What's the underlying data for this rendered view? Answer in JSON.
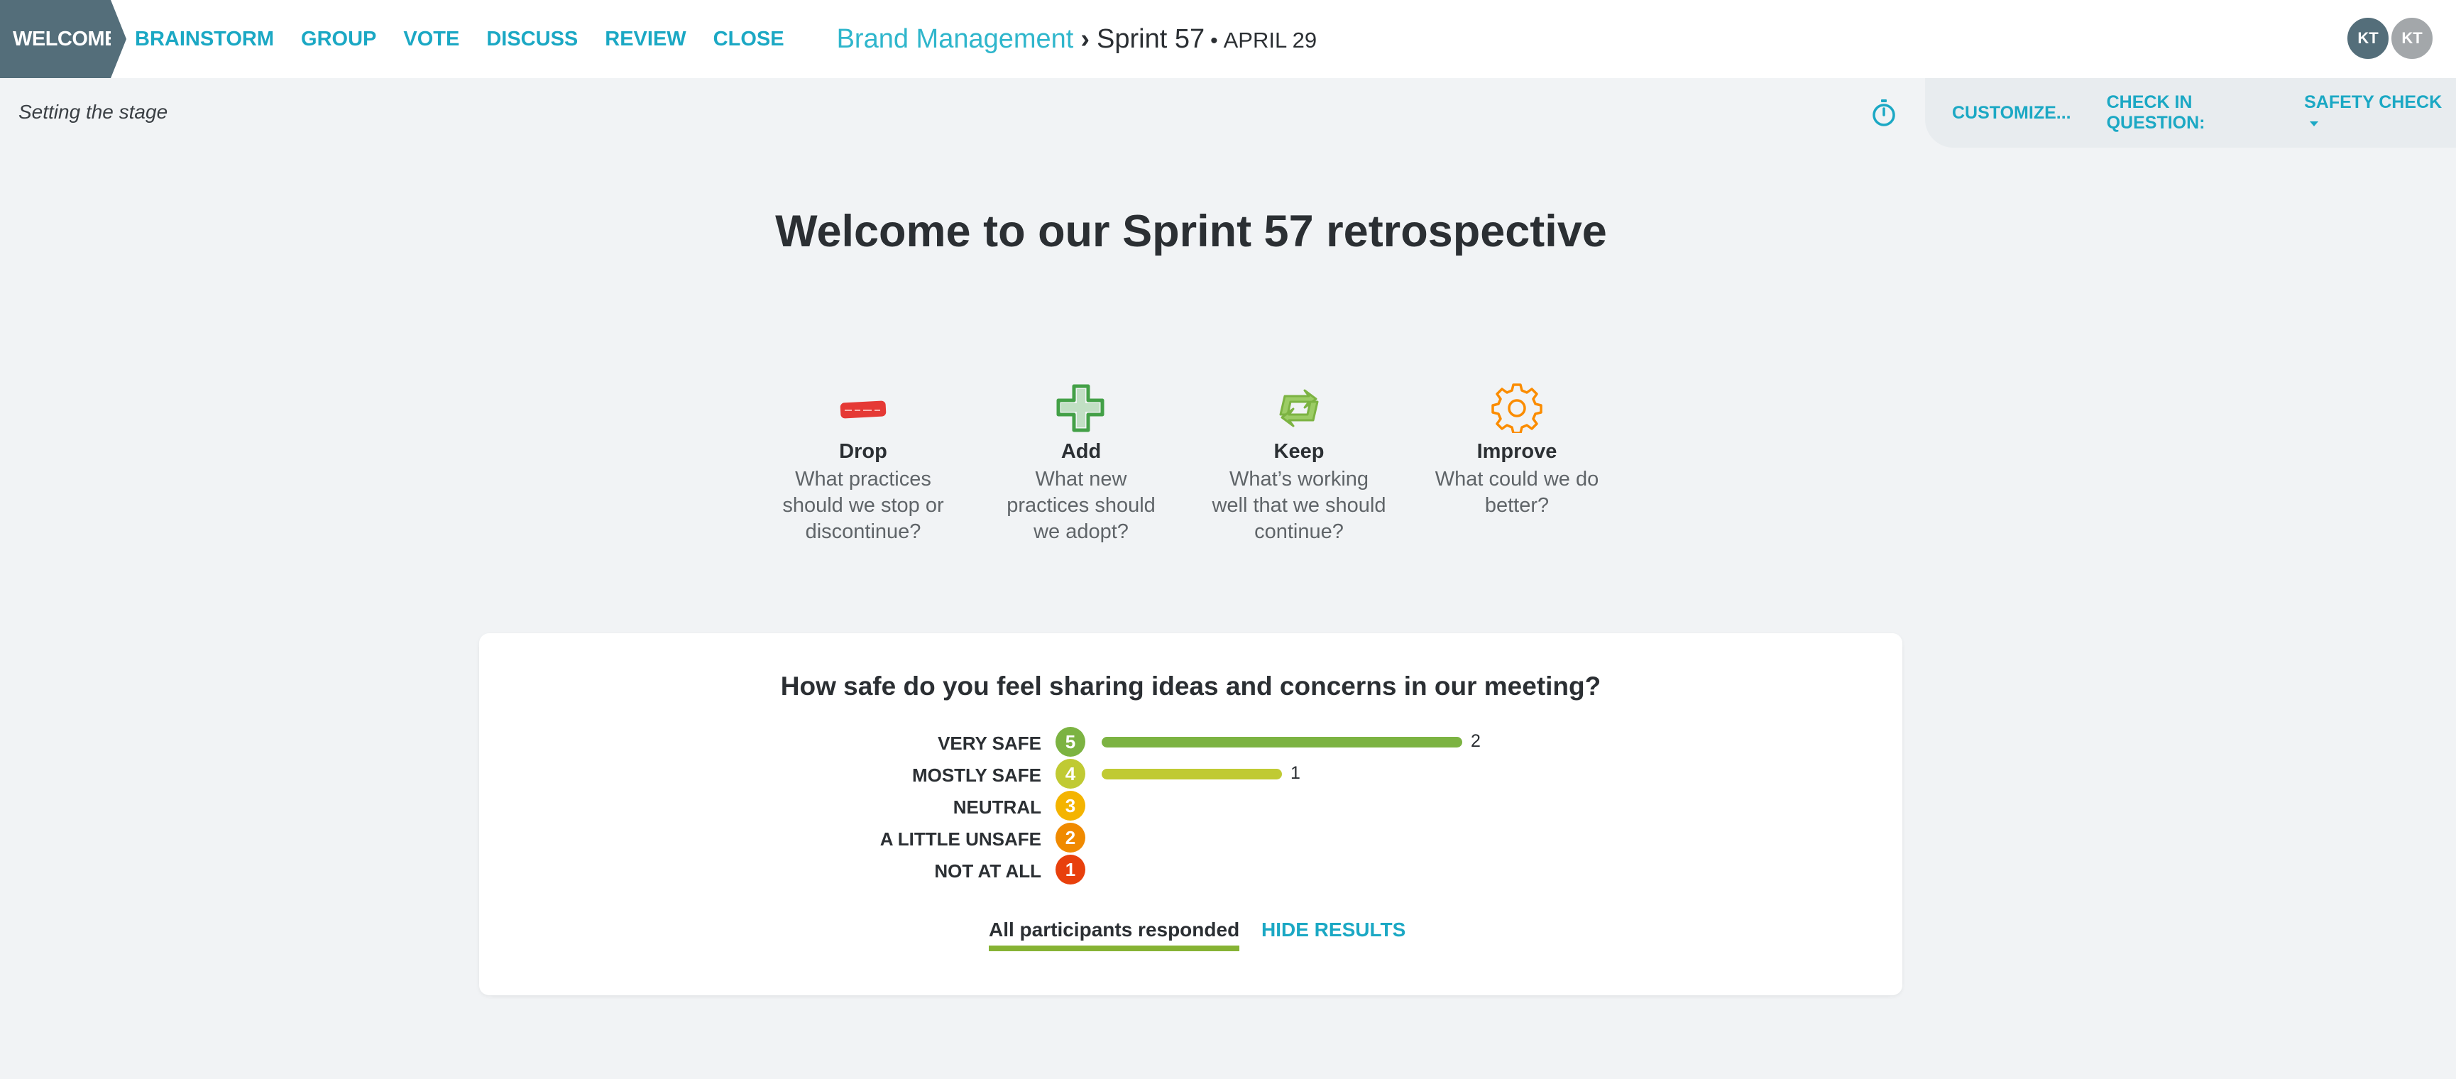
{
  "nav": {
    "stages": [
      {
        "label": "WELCOME",
        "active": true
      },
      {
        "label": "BRAINSTORM"
      },
      {
        "label": "GROUP"
      },
      {
        "label": "VOTE"
      },
      {
        "label": "DISCUSS"
      },
      {
        "label": "REVIEW"
      },
      {
        "label": "CLOSE"
      }
    ],
    "breadcrumb": {
      "team": "Brand Management",
      "separator": "›",
      "retro": "Sprint 57",
      "dot": "•",
      "date": "APRIL 29"
    },
    "avatars": [
      "KT",
      "KT"
    ]
  },
  "subbar": {
    "phase_label": "Setting the stage",
    "timer_icon": "stopwatch-icon",
    "customize": "CUSTOMIZE...",
    "checkin_label": "CHECK IN QUESTION:",
    "checkin_value": "SAFETY CHECK"
  },
  "welcome": {
    "prefix": "Welcome to our ",
    "name": "Sprint 57",
    "suffix": " retrospective"
  },
  "categories": [
    {
      "name": "Drop",
      "desc": "What practices should we stop or discontinue?",
      "icon": "eraser-icon",
      "color": "#e53935"
    },
    {
      "name": "Add",
      "desc": "What new practices should we adopt?",
      "icon": "plus-icon",
      "color": "#43a047"
    },
    {
      "name": "Keep",
      "desc": "What’s working well that we should continue?",
      "icon": "recycle-icon",
      "color": "#7cb342"
    },
    {
      "name": "Improve",
      "desc": "What could we do better?",
      "icon": "gear-icon",
      "color": "#fb8c00"
    }
  ],
  "safety_check": {
    "question": "How safe do you feel sharing ideas and concerns in our meeting?",
    "max_count": 2,
    "options": [
      {
        "label": "VERY SAFE",
        "score": "5",
        "count": 2,
        "count_label": "2",
        "color": "#7cb342"
      },
      {
        "label": "MOSTLY SAFE",
        "score": "4",
        "count": 1,
        "count_label": "1",
        "color": "#c0ca33"
      },
      {
        "label": "NEUTRAL",
        "score": "3",
        "count": 0,
        "count_label": "",
        "color": "#f4b400"
      },
      {
        "label": "A LITTLE UNSAFE",
        "score": "2",
        "count": 0,
        "count_label": "",
        "color": "#f08a00"
      },
      {
        "label": "NOT AT ALL",
        "score": "1",
        "count": 0,
        "count_label": "",
        "color": "#e8400c"
      }
    ],
    "responded_label": "All participants responded",
    "hide_results": "HIDE RESULTS"
  }
}
